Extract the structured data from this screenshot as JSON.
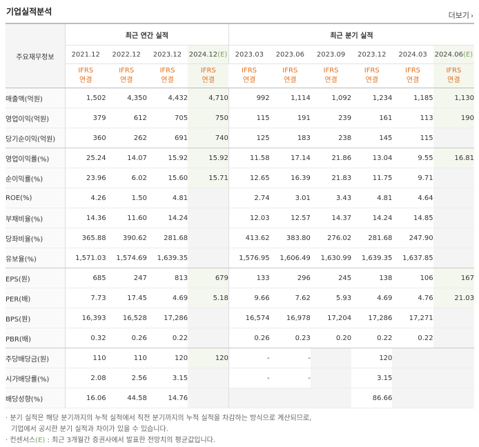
{
  "header": {
    "title": "기업실적분석",
    "more_label": "더보기"
  },
  "table": {
    "row_header": "주요재무정보",
    "groups": {
      "annual": "최근 연간 실적",
      "quarterly": "최근 분기 실적"
    },
    "periods": [
      "2021.12",
      "2022.12",
      "2023.12",
      "2024.12(E)",
      "2023.03",
      "2023.06",
      "2023.09",
      "2023.12",
      "2024.03",
      "2024.06(E)"
    ],
    "ifrs_line1": "IFRS",
    "ifrs_line2": "연결",
    "rows": [
      {
        "label": "매출액(억원)",
        "values": [
          "1,502",
          "4,350",
          "4,432",
          "4,710",
          "992",
          "1,114",
          "1,092",
          "1,234",
          "1,185",
          "1,130"
        ]
      },
      {
        "label": "영업이익(억원)",
        "values": [
          "379",
          "612",
          "705",
          "750",
          "115",
          "191",
          "239",
          "161",
          "113",
          "190"
        ]
      },
      {
        "label": "당기순이익(억원)",
        "values": [
          "360",
          "262",
          "691",
          "740",
          "125",
          "183",
          "238",
          "145",
          "115",
          ""
        ]
      },
      {
        "label": "영업이익률(%)",
        "values": [
          "25.24",
          "14.07",
          "15.92",
          "15.92",
          "11.58",
          "17.14",
          "21.86",
          "13.04",
          "9.55",
          "16.81"
        ]
      },
      {
        "label": "순이익률(%)",
        "values": [
          "23.96",
          "6.02",
          "15.60",
          "15.71",
          "12.65",
          "16.39",
          "21.83",
          "11.75",
          "9.71",
          ""
        ]
      },
      {
        "label": "ROE(%)",
        "values": [
          "4.26",
          "1.50",
          "4.81",
          "",
          "2.74",
          "3.01",
          "3.43",
          "4.81",
          "4.64",
          ""
        ]
      },
      {
        "label": "부채비율(%)",
        "values": [
          "14.36",
          "11.60",
          "14.24",
          "",
          "12.03",
          "12.57",
          "14.37",
          "14.24",
          "14.85",
          ""
        ]
      },
      {
        "label": "당좌비율(%)",
        "values": [
          "365.88",
          "390.62",
          "281.68",
          "",
          "413.62",
          "383.80",
          "276.02",
          "281.68",
          "247.90",
          ""
        ]
      },
      {
        "label": "유보율(%)",
        "values": [
          "1,571.03",
          "1,574.69",
          "1,639.35",
          "",
          "1,576.95",
          "1,606.49",
          "1,630.99",
          "1,639.35",
          "1,637.85",
          ""
        ]
      },
      {
        "label": "EPS(원)",
        "values": [
          "685",
          "247",
          "813",
          "679",
          "133",
          "296",
          "245",
          "138",
          "106",
          "167"
        ]
      },
      {
        "label": "PER(배)",
        "values": [
          "7.73",
          "17.45",
          "4.69",
          "5.18",
          "9.66",
          "7.62",
          "5.93",
          "4.69",
          "4.76",
          "21.03"
        ]
      },
      {
        "label": "BPS(원)",
        "values": [
          "16,393",
          "16,528",
          "17,286",
          "",
          "16,574",
          "16,978",
          "17,204",
          "17,286",
          "17,271",
          ""
        ]
      },
      {
        "label": "PBR(배)",
        "values": [
          "0.32",
          "0.26",
          "0.22",
          "",
          "0.26",
          "0.23",
          "0.20",
          "0.22",
          "0.22",
          ""
        ]
      },
      {
        "label": "주당배당금(원)",
        "values": [
          "110",
          "110",
          "120",
          "120",
          "-",
          "-",
          "",
          "120",
          "",
          ""
        ]
      },
      {
        "label": "시가배당률(%)",
        "values": [
          "2.08",
          "2.56",
          "3.15",
          "",
          "-",
          "-",
          "",
          "3.15",
          "",
          ""
        ]
      },
      {
        "label": "배당성향(%)",
        "values": [
          "16.06",
          "44.58",
          "14.76",
          "",
          "",
          "",
          "",
          "86.66",
          "",
          ""
        ]
      }
    ]
  },
  "notes": {
    "line1": "분기 실적은 해당 분기까지의 누적 실적에서 직전 분기까지의 누적 실적을 차감하는 방식으로 계산되므로,",
    "line2": "기업에서 공시한 분기 실적과 차이가 있을 수 있습니다.",
    "line3_prefix": "컨센서스",
    "line3_e": "(E)",
    "line3_suffix": " : 최근 3개월간 증권사에서 발표한 전망치의 평균값입니다."
  }
}
